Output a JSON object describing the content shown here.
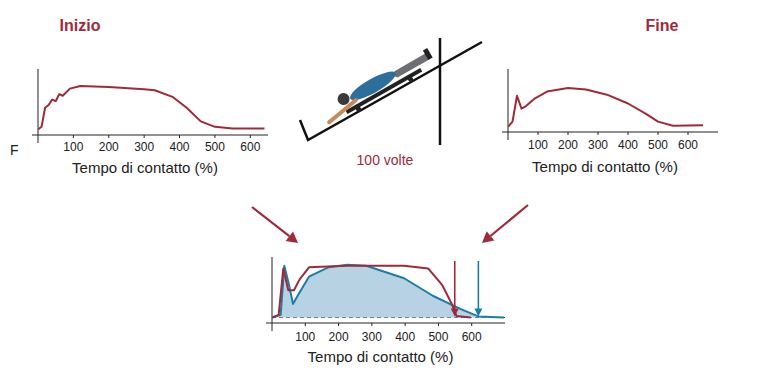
{
  "annotation": "100 volte",
  "chart_data": [
    {
      "type": "line",
      "title": "Inizio",
      "y_label": "F",
      "x_label": "Tempo di contatto (%)",
      "xlim": [
        0,
        650
      ],
      "ylim": [
        -10,
        100
      ],
      "xticks": [
        100,
        200,
        300,
        400,
        500,
        600
      ],
      "tick_labels": "x",
      "series": [
        {
          "color": "#9e2a3a",
          "x": [
            0,
            10,
            20,
            30,
            40,
            50,
            60,
            70,
            90,
            120,
            200,
            300,
            330,
            380,
            420,
            460,
            500,
            550,
            640
          ],
          "values": [
            0,
            5,
            40,
            45,
            55,
            52,
            65,
            62,
            75,
            80,
            78,
            74,
            72,
            60,
            40,
            15,
            5,
            2,
            2
          ]
        }
      ]
    },
    {
      "type": "line",
      "title": "Fine",
      "x_label": "Tempo di contatto (%)",
      "xlim": [
        0,
        700
      ],
      "ylim": [
        -10,
        100
      ],
      "xticks": [
        100,
        200,
        300,
        400,
        500,
        600
      ],
      "tick_labels": "x",
      "series": [
        {
          "color": "#9e2a3a",
          "x": [
            0,
            15,
            30,
            45,
            60,
            90,
            130,
            200,
            260,
            330,
            400,
            460,
            500,
            550,
            650
          ],
          "values": [
            0,
            10,
            60,
            35,
            40,
            55,
            68,
            75,
            72,
            62,
            45,
            25,
            10,
            2,
            3
          ]
        }
      ]
    },
    {
      "type": "line",
      "x_label": "Tempo di contatto (%)",
      "xlim": [
        0,
        700
      ],
      "ylim": [
        -10,
        100
      ],
      "xticks": [
        100,
        200,
        300,
        400,
        500,
        600
      ],
      "tick_labels": "x",
      "series": [
        {
          "color": "#9e2a3a",
          "x": [
            0,
            20,
            34,
            49,
            66,
            83,
            111,
            226,
            397,
            469,
            511,
            540,
            554,
            597
          ],
          "values": [
            0,
            5,
            90,
            50,
            50,
            70,
            92,
            95,
            95,
            90,
            60,
            25,
            3,
            0
          ]
        },
        {
          "color": "#1b7ea6",
          "type": "area",
          "x": [
            0,
            26,
            37,
            51,
            63,
            77,
            111,
            169,
            226,
            283,
            397,
            483,
            569,
            620,
            697
          ],
          "values": [
            0,
            5,
            95,
            60,
            25,
            40,
            75,
            92,
            97,
            95,
            72,
            40,
            15,
            2,
            0
          ]
        }
      ],
      "end_arrows": [
        549,
        620
      ]
    }
  ]
}
